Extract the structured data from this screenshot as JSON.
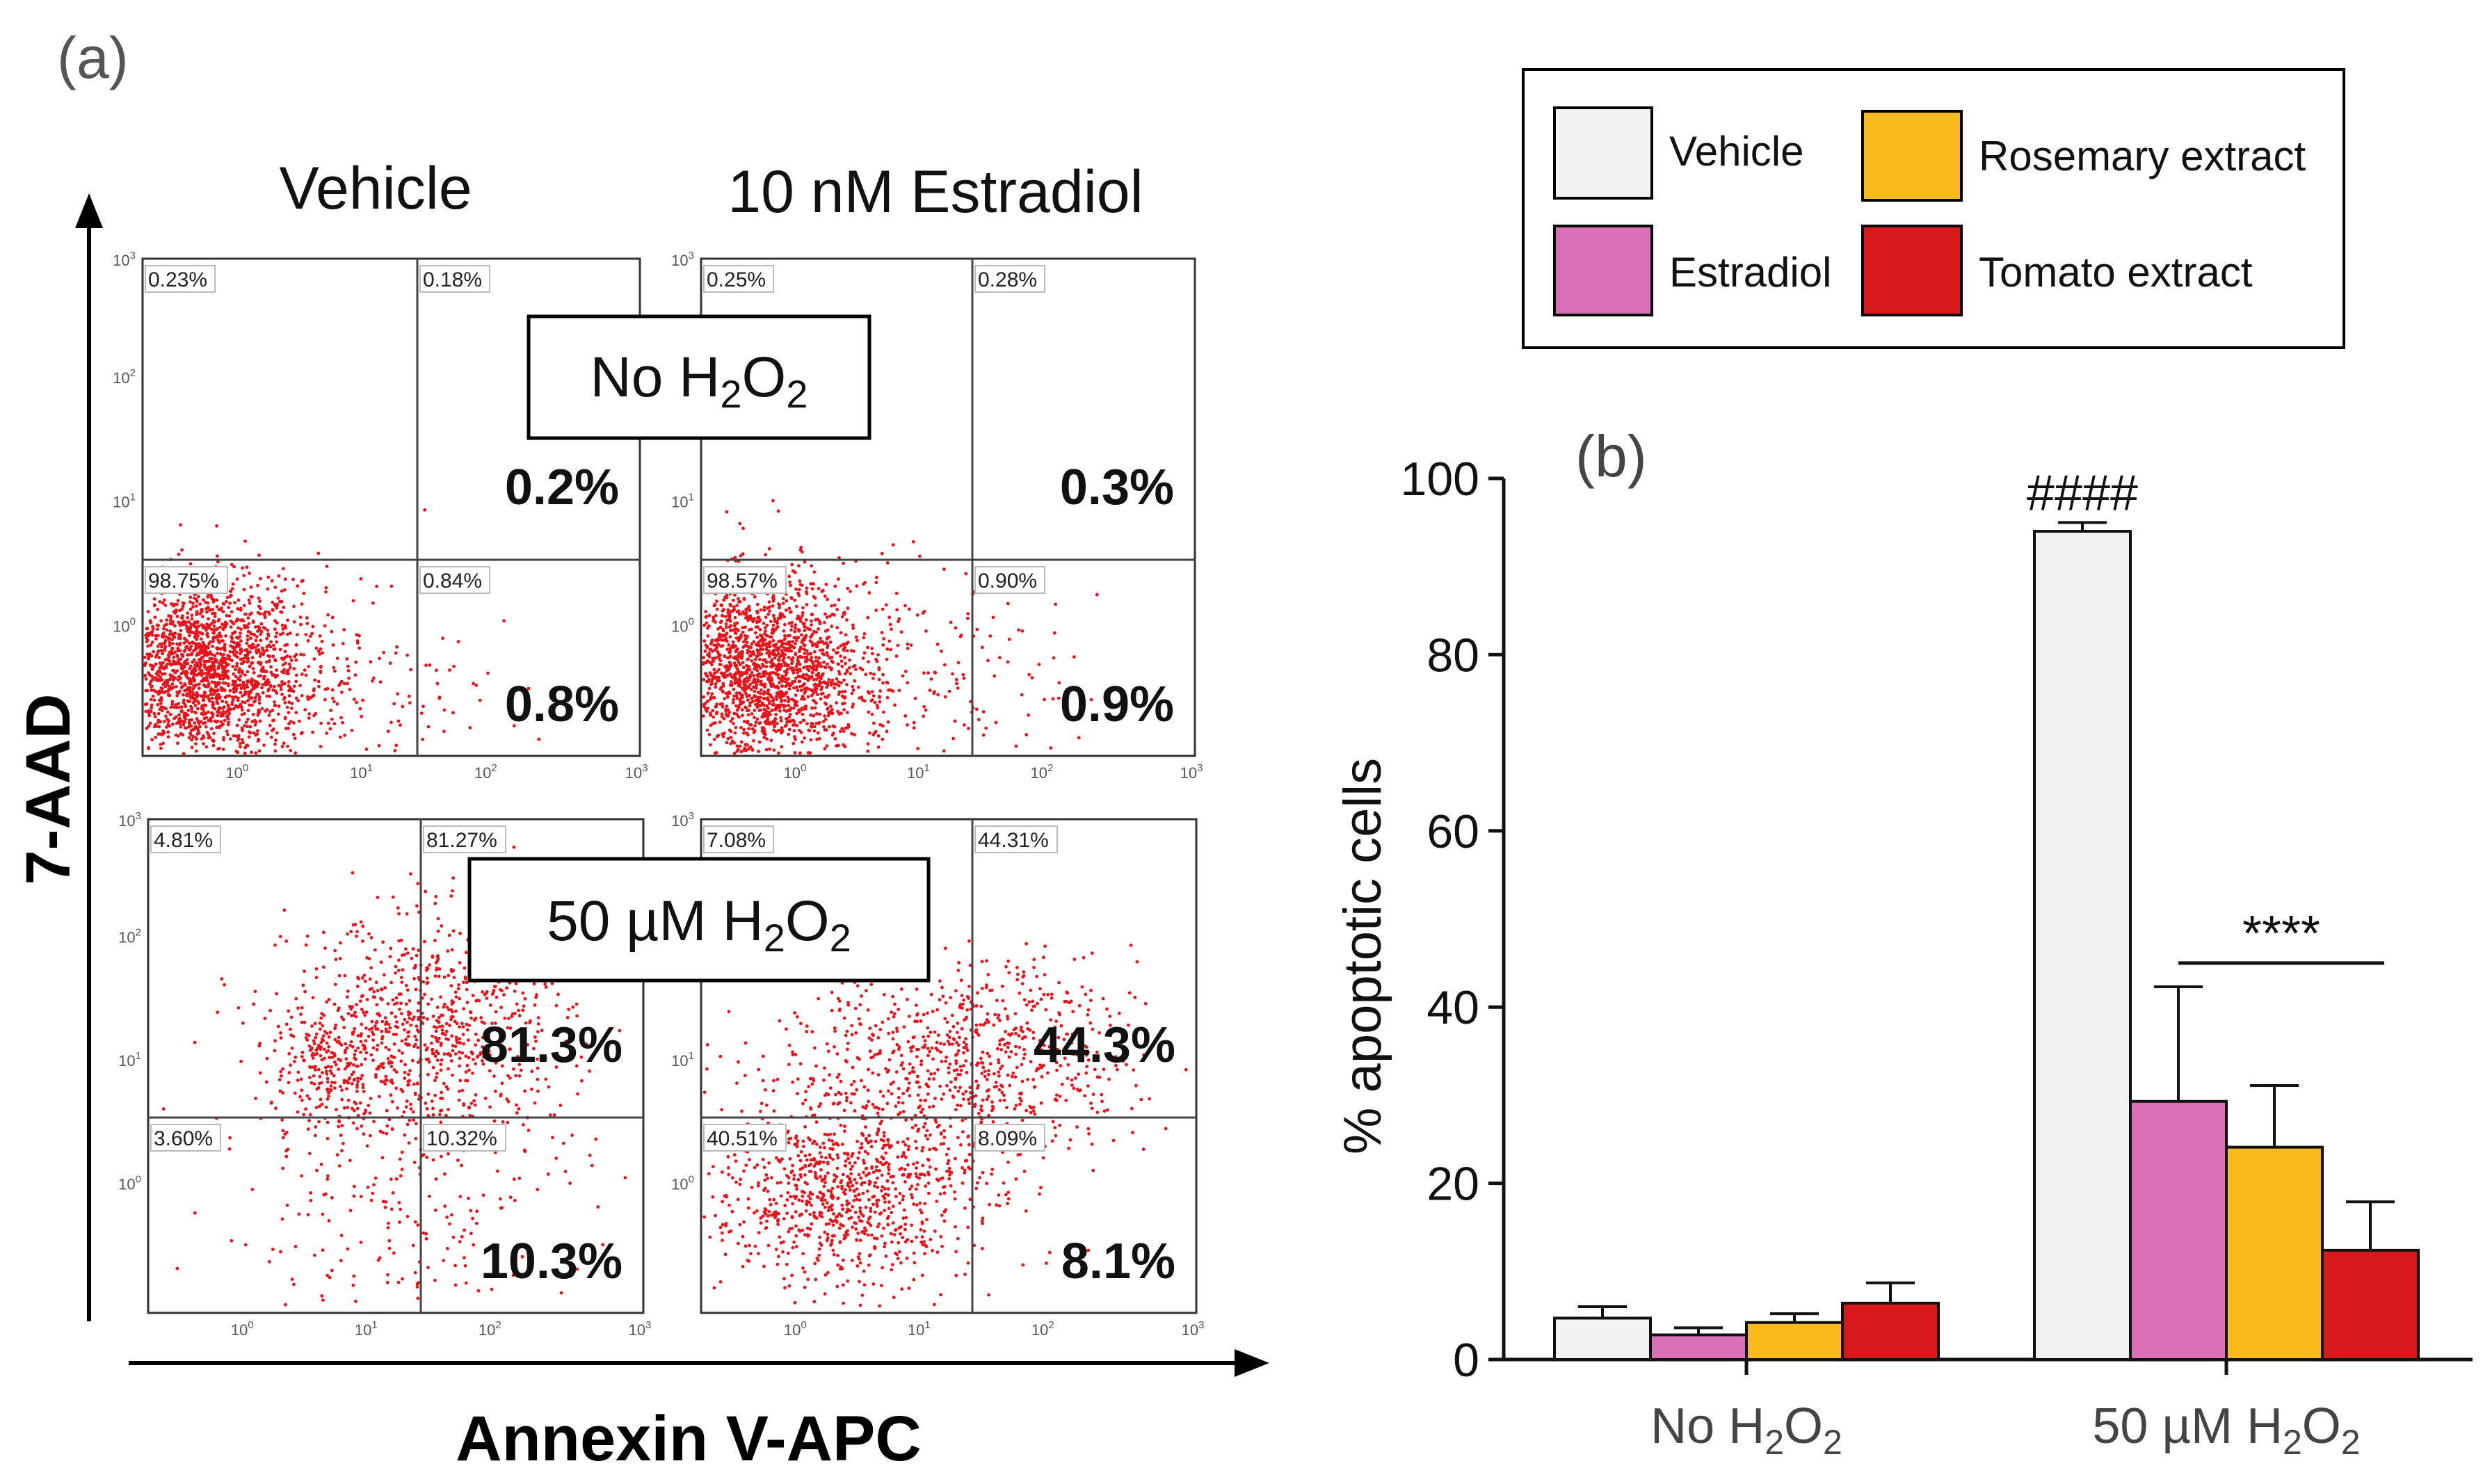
{
  "panel_a": {
    "label": "(a)",
    "col_titles": [
      "Vehicle",
      "10 nM Estradiol"
    ],
    "y_axis_label": "7-AAD",
    "x_axis_label": "Annexin V-APC",
    "row_labels": [
      {
        "main": "No H",
        "sub1": "2",
        "mid": "O",
        "sub2": "2"
      },
      {
        "main": "50 µM H",
        "sub1": "2",
        "mid": "O",
        "sub2": "2"
      }
    ],
    "tick_labels": [
      "10",
      "0",
      "1",
      "2",
      "3"
    ],
    "plots": [
      {
        "name": "vehicle-no-h2o2",
        "quadrants": [
          "0.23%",
          "0.18%",
          "98.75%",
          "0.84%"
        ],
        "big": [
          "0.2%",
          "0.8%"
        ]
      },
      {
        "name": "estradiol-no-h2o2",
        "quadrants": [
          "0.25%",
          "0.28%",
          "98.57%",
          "0.90%"
        ],
        "big": [
          "0.3%",
          "0.9%"
        ]
      },
      {
        "name": "vehicle-50um-h2o2",
        "quadrants": [
          "4.81%",
          "81.27%",
          "3.60%",
          "10.32%"
        ],
        "big": [
          "81.3%",
          "10.3%"
        ]
      },
      {
        "name": "estradiol-50um-h2o2",
        "quadrants": [
          "7.08%",
          "44.31%",
          "40.51%",
          "8.09%"
        ],
        "big": [
          "44.3%",
          "8.1%"
        ]
      }
    ],
    "dot_color": "#e8141b"
  },
  "chart_data": {
    "type": "bar",
    "title": "(b)",
    "ylabel": "% apoptotic cells",
    "xlabel": "",
    "ylim": [
      0,
      100
    ],
    "yticks": [
      0,
      20,
      40,
      60,
      80,
      100
    ],
    "categories": [
      {
        "main": "No H",
        "sub1": "2",
        "mid": "O",
        "sub2": "2"
      },
      {
        "main": "50 µM H",
        "sub1": "2",
        "mid": "O",
        "sub2": "2"
      }
    ],
    "series": [
      {
        "name": "Vehicle",
        "color": "#f2f2f2",
        "values": [
          4.7,
          94.0
        ],
        "errors": [
          1.3,
          1.0
        ]
      },
      {
        "name": "Estradiol",
        "color": "#dc70b8",
        "values": [
          2.8,
          29.3
        ],
        "errors": [
          0.8,
          13.0
        ]
      },
      {
        "name": "Rosemary extract",
        "color": "#fbba1c",
        "values": [
          4.2,
          24.1
        ],
        "errors": [
          1.0,
          7.0
        ]
      },
      {
        "name": "Tomato extract",
        "color": "#d8181b",
        "values": [
          6.4,
          12.4
        ],
        "errors": [
          2.3,
          5.5
        ]
      }
    ],
    "annotations": [
      "####",
      "****"
    ],
    "legend_position": "top"
  }
}
